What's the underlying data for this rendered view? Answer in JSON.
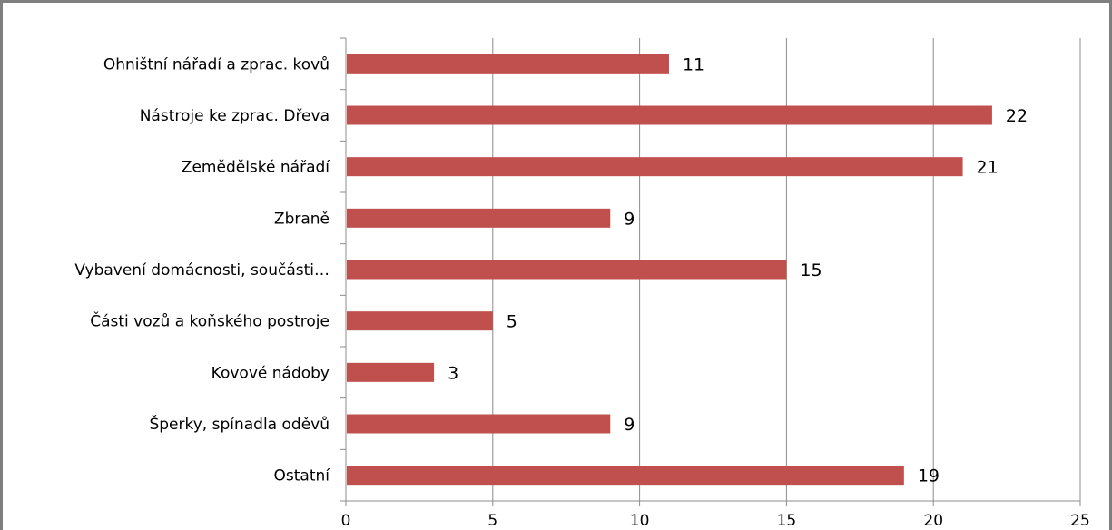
{
  "chart_data": {
    "type": "bar",
    "orientation": "horizontal",
    "categories": [
      "Ohništní nářadí a zprac. kovů",
      "Nástroje ke zprac. Dřeva",
      "Zemědělské nářadí",
      "Zbraně",
      "Vybavení domácnosti, součásti…",
      "Části vozů a koňského postroje",
      "Kovové nádoby",
      "Šperky, spínadla oděvů",
      "Ostatní"
    ],
    "values": [
      11,
      22,
      21,
      9,
      15,
      5,
      3,
      9,
      19
    ],
    "xticks": [
      "0",
      "5",
      "10",
      "15",
      "20",
      "25"
    ],
    "xlim": [
      0,
      25
    ],
    "grid": "vertical",
    "bar_color": "#c0504d",
    "title": "",
    "xlabel": "",
    "ylabel": ""
  }
}
